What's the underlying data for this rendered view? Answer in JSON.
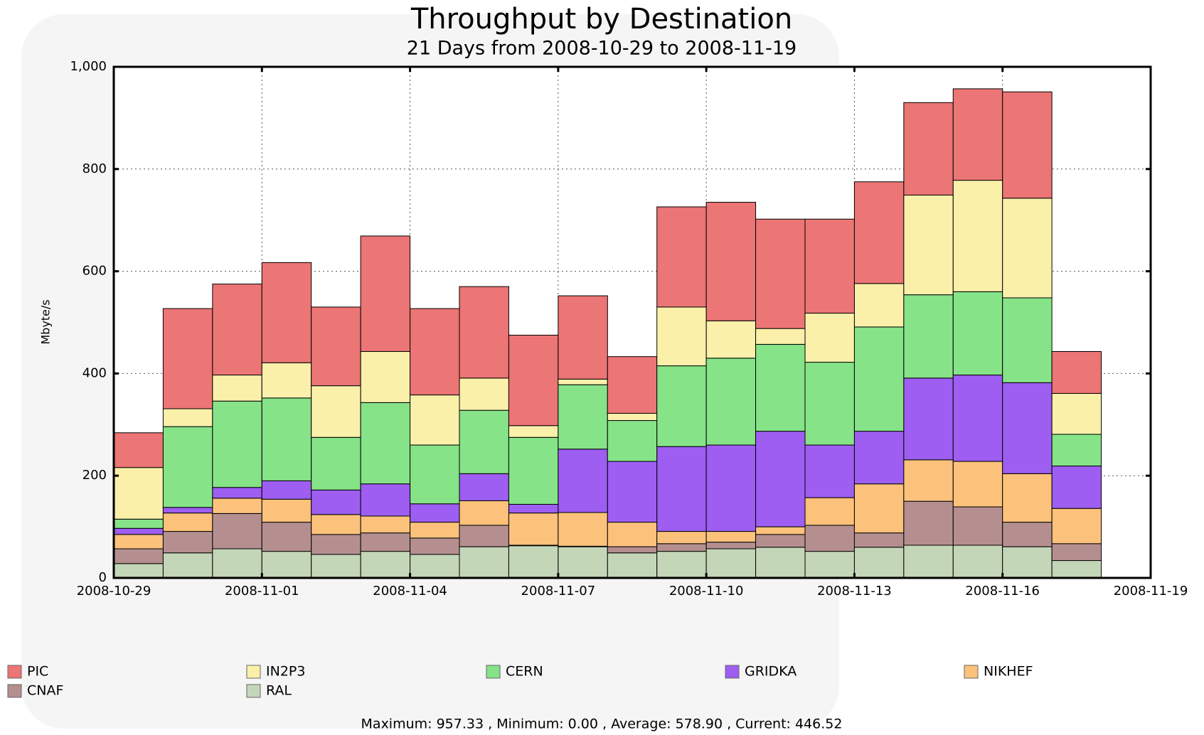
{
  "chart_data": {
    "type": "stacked-bar",
    "title": "Throughput by Destination",
    "subtitle": "21 Days from 2008-10-29 to 2008-11-19",
    "y_label": "Mbyte/s",
    "footer": "Maximum: 957.33 , Minimum: 0.00 , Average: 578.90 , Current: 446.52",
    "x": [
      "2008-10-29",
      "2008-10-30",
      "2008-10-31",
      "2008-11-01",
      "2008-11-02",
      "2008-11-03",
      "2008-11-04",
      "2008-11-05",
      "2008-11-06",
      "2008-11-07",
      "2008-11-08",
      "2008-11-09",
      "2008-11-10",
      "2008-11-11",
      "2008-11-12",
      "2008-11-13",
      "2008-11-14",
      "2008-11-15",
      "2008-11-16",
      "2008-11-17"
    ],
    "xlim": [
      "2008-10-29",
      "2008-11-19"
    ],
    "xticks": [
      "2008-10-29",
      "2008-11-01",
      "2008-11-04",
      "2008-11-07",
      "2008-11-10",
      "2008-11-13",
      "2008-11-16",
      "2008-11-19"
    ],
    "ylim": [
      0,
      1000
    ],
    "yticks": [
      0,
      200,
      400,
      600,
      800,
      {
        "value": 1000,
        "label": "1,000"
      }
    ],
    "grid": true,
    "series": [
      {
        "name": "PIC",
        "color": "#ec7575",
        "values": [
          68,
          196,
          178,
          196,
          154,
          226,
          169,
          179,
          177,
          163,
          111,
          196,
          232,
          214,
          184,
          199,
          181,
          179,
          208,
          82
        ]
      },
      {
        "name": "IN2P3",
        "color": "#fbf0aa",
        "values": [
          101,
          35,
          51,
          69,
          101,
          100,
          98,
          63,
          23,
          11,
          14,
          115,
          73,
          31,
          96,
          85,
          195,
          218,
          195,
          80
        ]
      },
      {
        "name": "CERN",
        "color": "#86e388",
        "values": [
          18,
          158,
          169,
          162,
          103,
          159,
          115,
          124,
          131,
          126,
          80,
          158,
          170,
          170,
          162,
          204,
          163,
          163,
          166,
          62
        ]
      },
      {
        "name": "GRIDKA",
        "color": "#9d5ef1",
        "values": [
          12,
          11,
          21,
          36,
          48,
          63,
          36,
          53,
          17,
          124,
          119,
          166,
          169,
          187,
          103,
          103,
          160,
          169,
          178,
          83
        ]
      },
      {
        "name": "NIKHEF",
        "color": "#fcc27b",
        "values": [
          28,
          36,
          30,
          45,
          39,
          33,
          31,
          48,
          63,
          66,
          48,
          24,
          21,
          15,
          54,
          96,
          81,
          89,
          95,
          69
        ]
      },
      {
        "name": "CNAF",
        "color": "#b58f8f",
        "values": [
          29,
          42,
          69,
          57,
          39,
          36,
          32,
          42,
          1,
          1,
          12,
          15,
          13,
          25,
          51,
          28,
          86,
          75,
          48,
          33
        ]
      },
      {
        "name": "RAL",
        "color": "#c4d6b8",
        "values": [
          28,
          49,
          57,
          52,
          46,
          52,
          46,
          61,
          63,
          61,
          49,
          52,
          57,
          60,
          52,
          60,
          64,
          64,
          61,
          34
        ]
      }
    ]
  }
}
